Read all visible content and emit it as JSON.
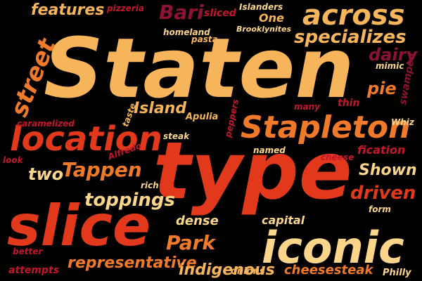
{
  "words": [
    "Staten",
    "type",
    "slice",
    "iconic",
    "location",
    "Stapleton",
    "across",
    "street",
    "specializes",
    "features",
    "Bari",
    "Island",
    "Tappen",
    "Park",
    "toppings",
    "two",
    "Shown",
    "driven",
    "dairy",
    "pie",
    "capital",
    "representative",
    "indigenous",
    "dense",
    "cheesesteak",
    "swamped",
    "attempts",
    "onions",
    "Philly",
    "rich",
    "better",
    "look",
    "Alfredo",
    "caramelized",
    "taste",
    "steak",
    "Apulia",
    "peppers",
    "named",
    "cheese",
    "fication",
    "many",
    "thin",
    "Whiz",
    "mimic",
    "form",
    "homeland",
    "pasta",
    "Brooklynites",
    "Islanders",
    "sliced",
    "One",
    "pizzeria"
  ],
  "palette": {
    "background": "#000000",
    "light_orange": "#f6b55a",
    "orange": "#f07a2a",
    "red_orange": "#e2391c",
    "crimson": "#c4162a",
    "maroon": "#8c1432",
    "pale_yellow": "#fbd58a"
  }
}
